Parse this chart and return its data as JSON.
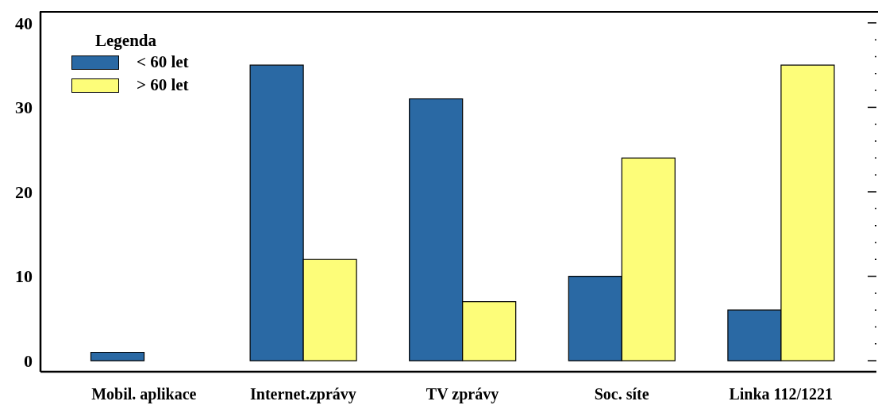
{
  "chart_data": {
    "type": "bar",
    "categories": [
      "Mobil. aplikace",
      "Internet.zprávy",
      "TV zprávy",
      "Soc. síte",
      "Linka 112/1221"
    ],
    "series": [
      {
        "name": "< 60 let",
        "color": "#2a69a4",
        "values": [
          1,
          35,
          31,
          10,
          6
        ]
      },
      {
        "name": "> 60 let",
        "color": "#fdfd79",
        "values": [
          0,
          12,
          7,
          24,
          35
        ]
      }
    ],
    "legend_title": "Legenda",
    "legend": "top left",
    "ylim": [
      -1.3,
      41.3
    ],
    "yticks": [
      0,
      {
        "value": 2,
        "label": null
      },
      {
        "value": 4,
        "label": null
      },
      {
        "value": 6,
        "label": null
      },
      {
        "value": 8,
        "label": null
      },
      10,
      {
        "value": 12,
        "label": null
      },
      {
        "value": 14,
        "label": null
      },
      {
        "value": 16,
        "label": null
      },
      {
        "value": 18,
        "label": null
      },
      20,
      {
        "value": 22,
        "label": null
      },
      {
        "value": 24,
        "label": null
      },
      {
        "value": 26,
        "label": null
      },
      {
        "value": 28,
        "label": null
      },
      30,
      {
        "value": 32,
        "label": null
      },
      {
        "value": 34,
        "label": null
      },
      {
        "value": 36,
        "label": null
      },
      {
        "value": 38,
        "label": null
      },
      40
    ],
    "grid": false
  }
}
